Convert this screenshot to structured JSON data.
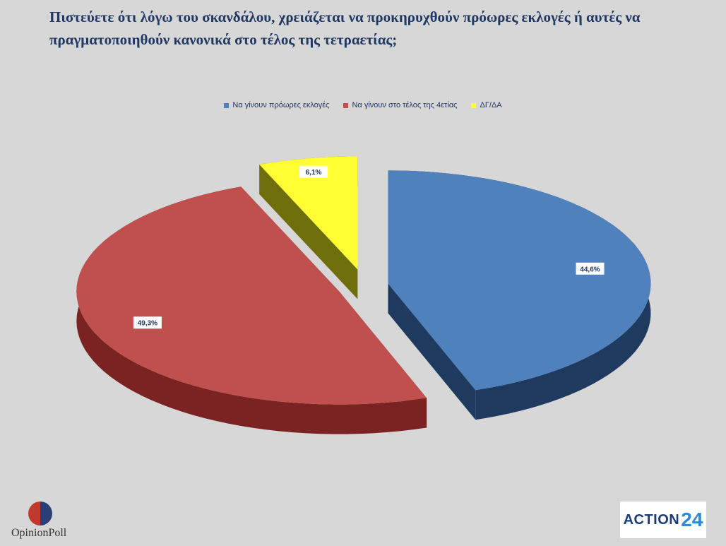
{
  "title": "Πιστεύετε ότι λόγω του σκανδάλου, χρειάζεται να προκηρυχθούν πρόωρες εκλογές ή αυτές να πραγματοποιηθούν κανονικά στο τέλος της τετραετίας;",
  "chart_data": {
    "type": "pie",
    "title": "Πιστεύετε ότι λόγω του σκανδάλου, χρειάζεται να προκηρυχθούν πρόωρες εκλογές ή αυτές να πραγματοποιηθούν κανονικά στο τέλος της τετραετίας;",
    "legend_position": "top",
    "categories": [
      "Να γίνουν πρόωρες εκλογές",
      "Να γίνουν στο τέλος της 4ετίας",
      "ΔΓ/ΔΑ"
    ],
    "values": [
      44.6,
      49.3,
      6.1
    ],
    "labels": [
      "44,6%",
      "49,3%",
      "6,1%"
    ],
    "colors": [
      "#4f81bd",
      "#c0504d",
      "#ffff33"
    ]
  },
  "logos": {
    "left": "OpinionPoll",
    "right_text": "ACTION",
    "right_num": "24"
  }
}
